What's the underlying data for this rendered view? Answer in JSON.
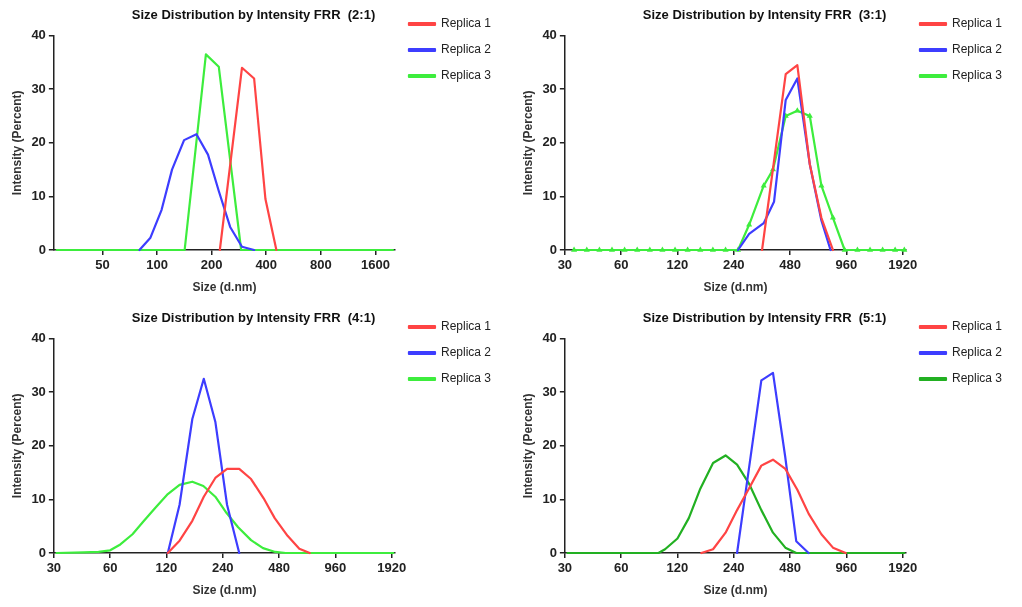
{
  "chart_data": [
    {
      "type": "line",
      "title": "Size Distribution by Intensity FRR  (2:1)",
      "xlabel": "Size (d.nm)",
      "ylabel": "Intensity (Percent)",
      "log": "x",
      "xlim": [
        27,
        2050
      ],
      "xticks": [
        50,
        100,
        200,
        400,
        800,
        1600
      ],
      "ylim": [
        0,
        40
      ],
      "yticks": [
        0,
        10,
        20,
        30,
        40
      ],
      "grid": false,
      "legend": "top right",
      "series": [
        {
          "name": "Replica 1",
          "color": "#ff4444",
          "x": [
            222,
            294,
            343,
            396,
            455
          ],
          "values": [
            0,
            34,
            32,
            9.5,
            0
          ]
        },
        {
          "name": "Replica 2",
          "color": "#3d3dff",
          "x": [
            80,
            92,
            106,
            121,
            141,
            165,
            191,
            219,
            253,
            294,
            343
          ],
          "values": [
            0,
            2.3,
            7.5,
            15,
            20.5,
            21.6,
            17.8,
            11,
            4.3,
            0.6,
            0
          ]
        },
        {
          "name": "Replica 3",
          "color": "#3ded3d",
          "x": [
            28,
            80,
            142,
            186,
            219,
            291,
            400,
            2000
          ],
          "values": [
            0,
            0,
            0,
            36.5,
            34.2,
            0,
            0,
            0
          ]
        }
      ]
    },
    {
      "type": "line",
      "title": "Size Distribution by Intensity FRR  (3:1)",
      "xlabel": "Size (d.nm)",
      "ylabel": "Intensity (Percent)",
      "log": "x",
      "xlim": [
        30,
        2000
      ],
      "xticks": [
        30,
        60,
        120,
        240,
        480,
        960,
        1920
      ],
      "ylim": [
        0,
        40
      ],
      "yticks": [
        0,
        10,
        20,
        30,
        40
      ],
      "grid": false,
      "legend": "top right",
      "series": [
        {
          "name": "Replica 1",
          "color": "#ff4444",
          "x": [
            340,
            455,
            525,
            612,
            706,
            814
          ],
          "values": [
            0,
            32.8,
            34.5,
            16,
            6,
            0
          ]
        },
        {
          "name": "Replica 2",
          "color": "#3d3dff",
          "x": [
            253,
            290,
            347,
            394,
            455,
            525,
            612,
            706,
            790
          ],
          "values": [
            0,
            3,
            5,
            9,
            28,
            32,
            16,
            5.5,
            0
          ]
        },
        {
          "name": "Replica 3",
          "color": "#3ded3d",
          "marker": "triangle",
          "x": [
            33.6,
            39.3,
            45.9,
            53.6,
            62.6,
            73.1,
            85.4,
            99.7,
            116.5,
            136,
            159,
            185.6,
            217,
            253,
            290,
            347,
            389,
            455,
            525,
            612,
            706,
            814,
            940,
            1100,
            1285,
            1500,
            1750,
            1960
          ],
          "values": [
            0,
            0,
            0,
            0,
            0,
            0,
            0,
            0,
            0,
            0,
            0,
            0,
            0,
            0,
            4.7,
            12,
            15,
            25,
            26,
            25,
            12,
            6,
            0,
            0,
            0,
            0,
            0,
            0
          ]
        }
      ]
    },
    {
      "type": "line",
      "title": "Size Distribution by Intensity FRR  (4:1)",
      "xlabel": "Size (d.nm)",
      "ylabel": "Intensity (Percent)",
      "log": "x",
      "xlim": [
        30,
        2000
      ],
      "xticks": [
        30,
        60,
        120,
        240,
        480,
        960,
        1920
      ],
      "ylim": [
        0,
        40
      ],
      "yticks": [
        0,
        10,
        20,
        30,
        40
      ],
      "grid": false,
      "legend": "top right",
      "series": [
        {
          "name": "Replica 1",
          "color": "#ff4444",
          "x": [
            122,
            141,
            165,
            190,
            219,
            253,
            294,
            340,
            397,
            455,
            533,
            616,
            700
          ],
          "values": [
            0,
            2.3,
            6,
            10.5,
            14,
            15.7,
            15.7,
            13.8,
            10.2,
            6.5,
            3.2,
            0.8,
            0
          ]
        },
        {
          "name": "Replica 2",
          "color": "#3d3dff",
          "x": [
            122,
            141,
            165,
            190,
            219,
            253,
            294
          ],
          "values": [
            0,
            9,
            25,
            32.5,
            24.5,
            9,
            0
          ]
        },
        {
          "name": "Replica 3",
          "color": "#3ded3d",
          "x": [
            31,
            43.4,
            52,
            60,
            68,
            79,
            91,
            105,
            122,
            141,
            165,
            189,
            219,
            251,
            290,
            340,
            394,
            458,
            521,
            1000,
            1960
          ],
          "values": [
            0,
            0.1,
            0.2,
            0.5,
            1.6,
            3.5,
            6,
            8.5,
            11,
            12.7,
            13.3,
            12.5,
            10.5,
            7.5,
            4.8,
            2.4,
            0.9,
            0.2,
            0,
            0,
            0
          ]
        }
      ]
    },
    {
      "type": "line",
      "title": "Size Distribution by Intensity FRR  (5:1)",
      "xlabel": "Size (d.nm)",
      "ylabel": "Intensity (Percent)",
      "log": "x",
      "xlim": [
        30,
        2000
      ],
      "xticks": [
        30,
        60,
        120,
        240,
        480,
        960,
        1920
      ],
      "ylim": [
        0,
        40
      ],
      "yticks": [
        0,
        10,
        20,
        30,
        40
      ],
      "grid": false,
      "legend": "top right",
      "series": [
        {
          "name": "Replica 1",
          "color": "#ff4444",
          "x": [
            161,
            186,
            217,
            250,
            289,
            337,
            389,
            453,
            525,
            604,
            706,
            814,
            952
          ],
          "values": [
            0,
            0.7,
            3.8,
            8,
            12,
            16.3,
            17.4,
            15.7,
            11.8,
            7.3,
            3.5,
            1,
            0
          ]
        },
        {
          "name": "Replica 2",
          "color": "#3d3dff",
          "x": [
            250,
            337,
            389,
            452,
            518,
            603
          ],
          "values": [
            0,
            32.2,
            33.6,
            18,
            2.2,
            0
          ]
        },
        {
          "name": "Replica 3",
          "color": "#22b022",
          "x": [
            31,
            60,
            95,
            103,
            120,
            138,
            159,
            186,
            217,
            250,
            289,
            337,
            389,
            453,
            518,
            1000,
            1960
          ],
          "values": [
            0,
            0,
            0,
            0.7,
            2.7,
            6.5,
            12,
            16.8,
            18.2,
            16.5,
            13,
            8,
            3.8,
            1,
            0,
            0,
            0
          ]
        }
      ]
    }
  ]
}
